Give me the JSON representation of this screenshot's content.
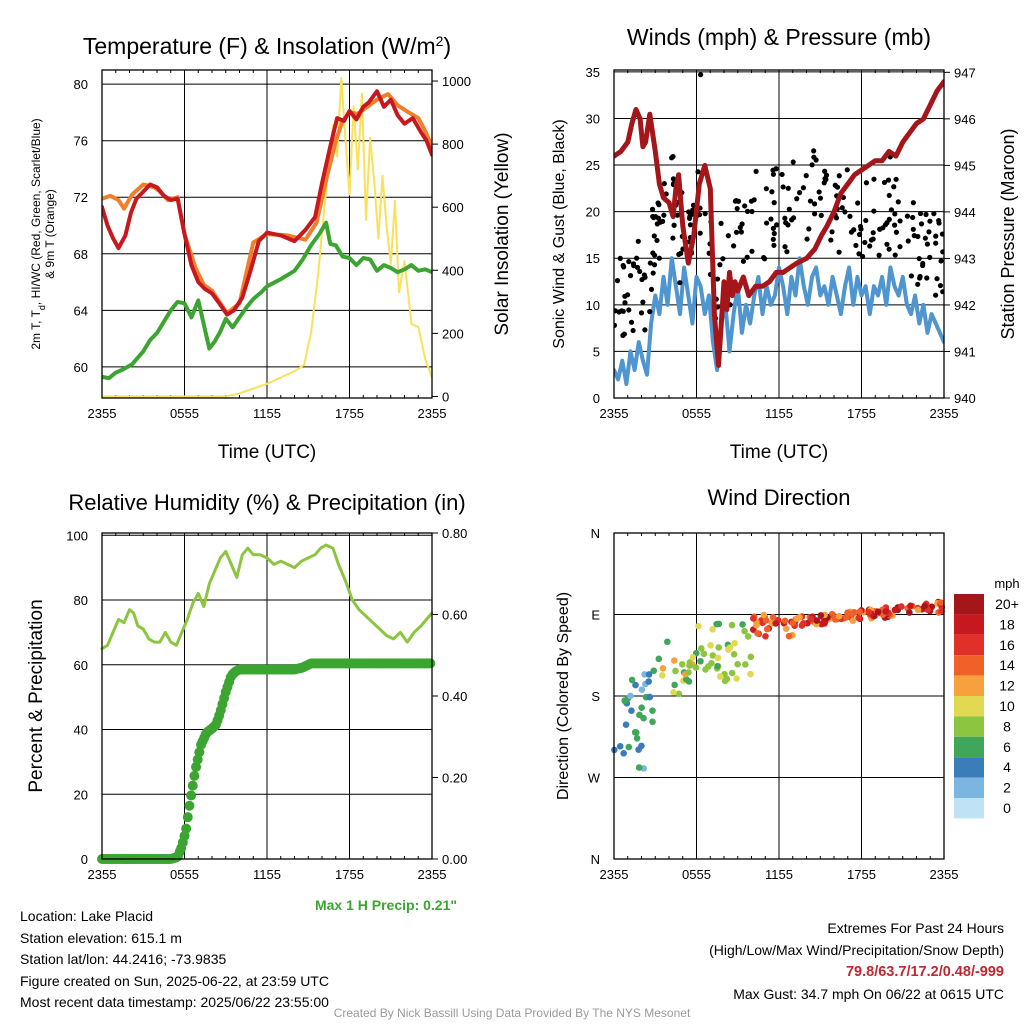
{
  "chart_data": [
    {
      "id": "temp",
      "type": "line",
      "title_main": "Temperature (F) & Insolation (W/m",
      "title_sup": "2",
      "title_end": ")",
      "ylabel_lines": [
        "2m T, T",
        "d",
        ", HI/WC (Red, Green, Scarlet/Blue)",
        "& 9m T (Orange)"
      ],
      "ylabel_right": "Solar Insolation (Yellow)",
      "xlabel": "Time (UTC)",
      "x_ticks": [
        "2355",
        "0555",
        "1155",
        "1755",
        "2355"
      ],
      "y_ticks": [
        "60",
        "64",
        "68",
        "72",
        "76",
        "80"
      ],
      "y2_ticks": [
        "0",
        "200",
        "400",
        "600",
        "800",
        "1000"
      ],
      "ylim": [
        57.8,
        81
      ],
      "y2lim": [
        -5,
        1035
      ],
      "x_unit": "hours since 2355 UTC",
      "grid": true,
      "series": [
        {
          "axis": "left",
          "color": "#f07f2c",
          "width": 4,
          "x": [
            0,
            0.6,
            1.2,
            1.6,
            2.2,
            3,
            3.8,
            4.2,
            4.8,
            5.5,
            6,
            6.8,
            7.4,
            8,
            8.6,
            9.1,
            10,
            11,
            12,
            13.5,
            14.8,
            15.6,
            16.3,
            17,
            17.5,
            18,
            18.6,
            19.3,
            20,
            20.8,
            21.5,
            22.3,
            23,
            23.5,
            24
          ],
          "y": [
            71.9,
            72.1,
            71.8,
            71.2,
            72.2,
            72.9,
            72.7,
            72.4,
            71.8,
            72,
            69.4,
            67,
            65.8,
            65.4,
            64.5,
            63.8,
            64.5,
            68.8,
            69.4,
            69.3,
            69,
            70.2,
            73.2,
            76,
            77.4,
            78,
            77.9,
            78.4,
            78.9,
            79.3,
            78.5,
            78,
            77.6,
            76.7,
            75.6
          ]
        },
        {
          "axis": "left",
          "color": "#c8181f",
          "width": 4,
          "x": [
            0,
            0.4,
            0.8,
            1.2,
            1.7,
            2.1,
            2.5,
            3,
            3.5,
            4,
            4.5,
            5,
            5.5,
            6,
            6.5,
            7,
            7.5,
            8,
            8.6,
            9.1,
            9.6,
            10.2,
            10.8,
            11.4,
            12,
            13,
            14,
            14.8,
            15.5,
            16,
            16.6,
            17.1,
            17.6,
            18,
            18.5,
            19,
            19.4,
            20,
            20.5,
            21,
            21.5,
            22,
            22.6,
            23.2,
            23.6,
            24
          ],
          "y": [
            71.3,
            70,
            69.1,
            68.4,
            69.3,
            70.9,
            71.9,
            72.4,
            72.9,
            72.7,
            72.1,
            71.8,
            71.9,
            69.4,
            67.2,
            66,
            65.5,
            65.2,
            64.4,
            63.7,
            64,
            64.9,
            66.8,
            68.9,
            69.5,
            69.3,
            68.9,
            69.7,
            70.6,
            73,
            75.6,
            77.6,
            77.4,
            78.1,
            77.5,
            78.4,
            78.7,
            79.5,
            78.4,
            78.9,
            77.8,
            77.2,
            77.6,
            76.6,
            76,
            75
          ]
        },
        {
          "axis": "left",
          "color": "#3ca532",
          "width": 4,
          "x": [
            0,
            0.5,
            1,
            1.5,
            2.2,
            3,
            3.5,
            4,
            4.5,
            5,
            5.5,
            6,
            6.5,
            7,
            7.4,
            7.8,
            8.2,
            8.6,
            9,
            9.5,
            10,
            10.5,
            11,
            11.6,
            12,
            13,
            14,
            14.6,
            15.2,
            15.8,
            16.3,
            16.6,
            17,
            17.5,
            18,
            18.5,
            19,
            19.5,
            20,
            20.5,
            21,
            21.5,
            22,
            22.5,
            23,
            23.5,
            24
          ],
          "y": [
            59.3,
            59.2,
            59.6,
            59.8,
            60.2,
            61.1,
            61.9,
            62.4,
            63.2,
            64,
            64.6,
            64.5,
            63.5,
            64.7,
            63,
            61.3,
            61.8,
            62.5,
            63.4,
            62.8,
            63.5,
            64.2,
            64.8,
            65.3,
            65.7,
            66.2,
            66.8,
            67.6,
            68.6,
            69.4,
            70.2,
            68.7,
            68.6,
            67.8,
            67.7,
            67.2,
            67.7,
            67.6,
            66.8,
            67.2,
            67,
            66.7,
            66.9,
            67.2,
            66.8,
            66.9,
            66.7
          ]
        },
        {
          "axis": "right",
          "color": "#f9e15a",
          "width": 2,
          "x": [
            0,
            2,
            4,
            6,
            7.5,
            9,
            10,
            11,
            12,
            13,
            14,
            14.7,
            15.2,
            15.7,
            16,
            16.4,
            16.8,
            17.1,
            17.4,
            17.7,
            18,
            18.3,
            18.6,
            18.9,
            19.2,
            19.5,
            19.8,
            20.1,
            20.4,
            20.7,
            21,
            21.3,
            21.6,
            22,
            22.5,
            23,
            23.5,
            24
          ],
          "y": [
            0,
            0,
            0,
            0,
            0,
            0,
            10,
            25,
            40,
            60,
            80,
            100,
            200,
            380,
            520,
            700,
            860,
            760,
            1010,
            820,
            640,
            920,
            720,
            960,
            560,
            820,
            680,
            500,
            700,
            540,
            420,
            620,
            330,
            430,
            230,
            220,
            120,
            60
          ]
        }
      ]
    },
    {
      "id": "wind",
      "type": "line",
      "title": "Winds (mph) & Pressure (mb)",
      "ylabel": "Sonic Wind & Gust (Blue, Black)",
      "ylabel_right": "Station Pressure (Maroon)",
      "xlabel": "Time (UTC)",
      "x_ticks": [
        "2355",
        "0555",
        "1155",
        "1755",
        "2355"
      ],
      "y_ticks": [
        "0",
        "5",
        "10",
        "15",
        "20",
        "25",
        "30",
        "35"
      ],
      "y2_ticks": [
        "940",
        "941",
        "942",
        "943",
        "944",
        "945",
        "946",
        "947"
      ],
      "ylim": [
        0,
        35.2
      ],
      "y2lim": [
        940,
        947.05
      ],
      "grid": true,
      "series": [
        {
          "name": "pressure",
          "axis": "right",
          "color": "#a4161a",
          "width": 5,
          "x": [
            0,
            0.5,
            1,
            1.3,
            1.6,
            1.9,
            2.1,
            2.3,
            2.6,
            3,
            3.3,
            3.6,
            4,
            4.3,
            4.5,
            4.7,
            5,
            5.4,
            5.8,
            6.2,
            6.6,
            7,
            7.3,
            7.6,
            7.8,
            8,
            8.2,
            8.4,
            8.6,
            8.8,
            9,
            9.4,
            9.8,
            10.3,
            10.8,
            11.3,
            11.8,
            12.3,
            12.8,
            13.3,
            14,
            14.6,
            15.1,
            15.5,
            16,
            16.5,
            17,
            17.5,
            18,
            18.5,
            19,
            19.5,
            20,
            20.5,
            21,
            21.5,
            22,
            22.5,
            23,
            23.5,
            24
          ],
          "y": [
            945.2,
            945.3,
            945.5,
            945.9,
            946.2,
            946,
            945.4,
            945.5,
            946.1,
            945.3,
            944.6,
            944.3,
            944.2,
            943.9,
            944.5,
            944.8,
            943.7,
            942.9,
            943.5,
            944.6,
            945,
            944.5,
            941.8,
            940.7,
            941.6,
            942.5,
            941.9,
            942.7,
            942.2,
            942.5,
            942.3,
            942.6,
            942.2,
            942.4,
            942.4,
            942.5,
            942.7,
            942.7,
            942.8,
            942.9,
            943,
            943.2,
            943.5,
            943.7,
            944,
            944.4,
            944.6,
            944.8,
            944.9,
            945,
            945.1,
            945.1,
            945.3,
            945.2,
            945.5,
            945.7,
            945.9,
            946,
            946.3,
            946.6,
            946.8
          ]
        },
        {
          "name": "wind",
          "axis": "left",
          "color": "#4f95cf",
          "width": 4,
          "x": [
            0,
            0.3,
            0.6,
            0.9,
            1.2,
            1.5,
            1.8,
            2.1,
            2.4,
            2.7,
            3,
            3.3,
            3.6,
            3.9,
            4.2,
            4.5,
            4.8,
            5.1,
            5.4,
            5.7,
            6,
            6.3,
            6.6,
            6.9,
            7.2,
            7.5,
            7.8,
            8.1,
            8.4,
            8.7,
            9,
            9.3,
            9.6,
            9.9,
            10.2,
            10.5,
            10.8,
            11.1,
            11.4,
            11.7,
            12,
            12.3,
            12.6,
            12.9,
            13.2,
            13.5,
            13.8,
            14.1,
            14.4,
            14.7,
            15,
            15.3,
            15.6,
            15.9,
            16.2,
            16.5,
            16.8,
            17.1,
            17.4,
            17.7,
            18,
            18.3,
            18.6,
            18.9,
            19.2,
            19.5,
            19.8,
            20.1,
            20.4,
            20.7,
            21,
            21.3,
            21.6,
            21.9,
            22.2,
            22.5,
            22.8,
            23.1,
            23.4,
            23.7,
            24
          ],
          "y": [
            3,
            2,
            4,
            1.5,
            5,
            3,
            6,
            4,
            2.5,
            8,
            11,
            9,
            13,
            10,
            15,
            12,
            9,
            14,
            11,
            8,
            13,
            12,
            9,
            11,
            6,
            3,
            8,
            10,
            5,
            9,
            12,
            7,
            10,
            8,
            11,
            13,
            9,
            12,
            10,
            11,
            14,
            12,
            9,
            13,
            11,
            15,
            12,
            10,
            13,
            14,
            11,
            12,
            10,
            13,
            11,
            9,
            12,
            14,
            10,
            13,
            11,
            12,
            9,
            12,
            11,
            13,
            10,
            14,
            12,
            11,
            13,
            10,
            9,
            11,
            8,
            10,
            7,
            9,
            8,
            7,
            6
          ]
        }
      ],
      "gusts_seed": 7,
      "gust_count": 260
    },
    {
      "id": "rh",
      "type": "line",
      "title": "Relative Humidity (%) & Precipitation (in)",
      "ylabel": "Percent & Precipitation",
      "x_ticks": [
        "2355",
        "0555",
        "1155",
        "1755",
        "2355"
      ],
      "y_ticks": [
        "0",
        "20",
        "40",
        "60",
        "80",
        "100"
      ],
      "y2_ticks": [
        "0.00",
        "0.20",
        "0.40",
        "0.60",
        "0.80"
      ],
      "ylim": [
        0,
        100.7
      ],
      "y2lim": [
        0,
        0.8
      ],
      "grid": true,
      "note": "Max 1 H Precip: 0.21\"",
      "series": [
        {
          "name": "rh",
          "axis": "left",
          "color": "#8cc540",
          "width": 3,
          "x": [
            0,
            0.4,
            0.8,
            1.2,
            1.6,
            2,
            2.3,
            2.6,
            3,
            3.4,
            3.8,
            4.2,
            4.6,
            5,
            5.4,
            5.8,
            6.2,
            6.6,
            7,
            7.4,
            7.8,
            8.2,
            8.6,
            9,
            9.4,
            9.8,
            10.2,
            10.6,
            11,
            11.5,
            12,
            12.5,
            13,
            13.5,
            14,
            14.5,
            15,
            15.5,
            15.9,
            16.3,
            16.8,
            17.2,
            17.7,
            18.2,
            18.7,
            19.2,
            19.7,
            20.2,
            20.7,
            21.2,
            21.7,
            22.2,
            22.7,
            23.2,
            23.6,
            24
          ],
          "y": [
            65,
            66,
            70,
            74,
            73,
            77,
            76,
            72,
            71,
            68,
            67,
            67,
            70,
            67,
            66,
            70,
            74,
            79,
            82,
            78,
            85,
            89,
            93,
            95,
            91,
            87,
            94,
            96,
            94,
            94,
            93,
            91,
            92,
            91,
            90,
            92,
            93,
            94,
            96,
            97,
            96,
            91,
            86,
            80,
            77,
            75,
            73,
            71,
            69,
            68,
            70,
            67,
            70,
            72,
            74,
            76
          ]
        },
        {
          "name": "precip",
          "axis": "right",
          "color": "#3ca532",
          "width": 11,
          "x": [
            0,
            4.5,
            5,
            5.5,
            5.8,
            6.1,
            6.4,
            6.8,
            7.2,
            7.6,
            8,
            8.3,
            8.6,
            9,
            9.2,
            9.4,
            9.7,
            10,
            10.3,
            10.6,
            11,
            11.5,
            12,
            13,
            14,
            14.6,
            14.9,
            15.2,
            16,
            18,
            20,
            22,
            24
          ],
          "y": [
            0,
            0,
            0,
            0.005,
            0.03,
            0.07,
            0.14,
            0.22,
            0.28,
            0.31,
            0.32,
            0.33,
            0.36,
            0.41,
            0.43,
            0.45,
            0.46,
            0.465,
            0.465,
            0.465,
            0.465,
            0.465,
            0.465,
            0.465,
            0.465,
            0.47,
            0.475,
            0.48,
            0.48,
            0.48,
            0.48,
            0.48,
            0.48
          ]
        }
      ]
    },
    {
      "id": "wdir",
      "type": "scatter",
      "title": "Wind Direction",
      "ylabel": "Direction (Colored By Speed)",
      "x_ticks": [
        "2355",
        "0555",
        "1155",
        "1755",
        "2355"
      ],
      "y_ticks": [
        "N",
        "E",
        "S",
        "W",
        "N"
      ],
      "ylim": [
        0,
        360
      ],
      "grid": true,
      "legend_title": "mph",
      "legend_labels": [
        "20+",
        "18",
        "16",
        "14",
        "12",
        "10",
        "8",
        "6",
        "4",
        "2",
        "0"
      ],
      "legend_colors": [
        "#a4161a",
        "#c8181f",
        "#e03027",
        "#f0612a",
        "#f7a13c",
        "#e3d851",
        "#8cc540",
        "#3fa65a",
        "#3a7db9",
        "#7bb6e0",
        "#bfe3f5"
      ],
      "point_count": 220
    }
  ],
  "footer": {
    "location": "Location: Lake Placid",
    "elevation": "Station elevation: 615.1 m",
    "latlon": "Station lat/lon: 44.2416; -73.9835",
    "created": "Figure created on Sun, 2025-06-22, at 23:59 UTC",
    "recent": "Most recent data timestamp: 2025/06/22 23:55:00",
    "extremes_title": "Extremes For Past 24 Hours",
    "extremes_sub": "(High/Low/Max Wind/Precipitation/Snow Depth)",
    "extremes_values": "79.8/63.7/17.2/0.48/-999",
    "max_gust": "Max Gust: 34.7 mph On 06/22 at 0615 UTC",
    "credit": "Created By Nick Bassill Using Data Provided By The NYS Mesonet"
  }
}
